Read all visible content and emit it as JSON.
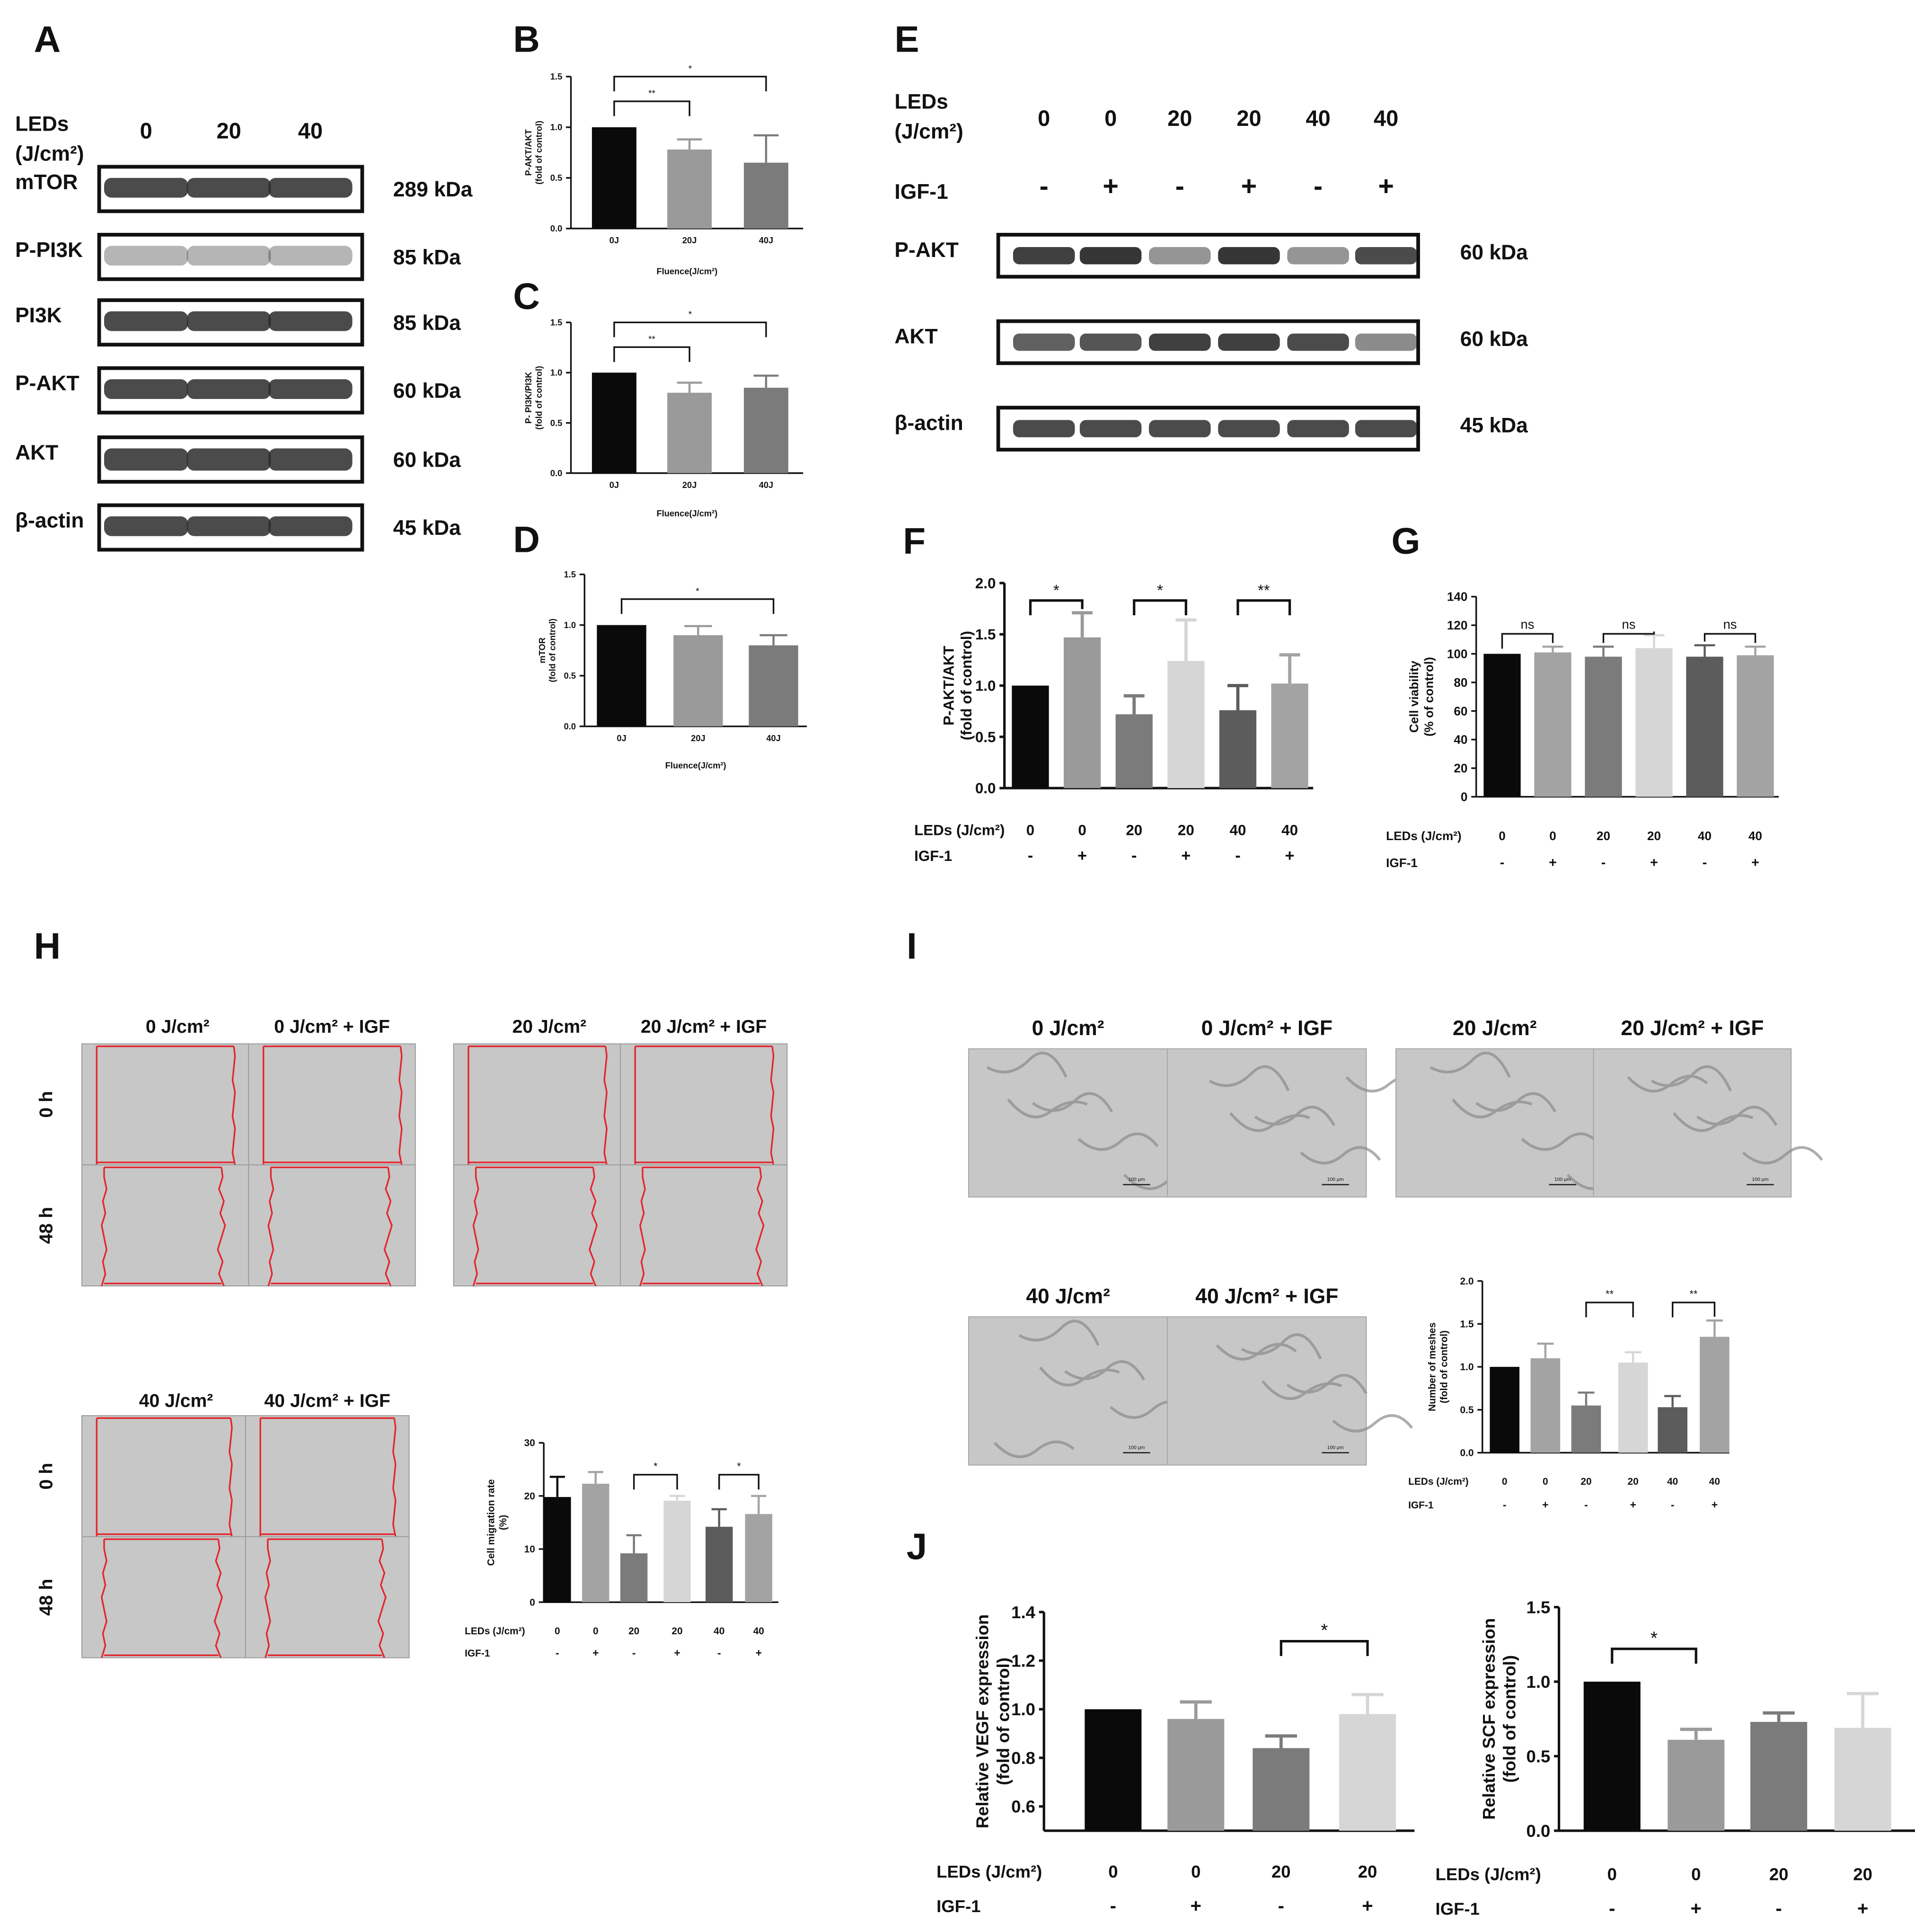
{
  "panel_letters": [
    "A",
    "B",
    "C",
    "D",
    "E",
    "F",
    "G",
    "H",
    "I",
    "J"
  ],
  "colors": {
    "black": "#0a0a0a",
    "mid_gray": "#9a9a9a",
    "dark_gray": "#7b7b7b",
    "light_gray": "#d6d6d6",
    "darker_gray": "#5c5c5c",
    "gray_2": "#a3a3a3",
    "band": "#2b2b2b",
    "blot_frame": "#111111",
    "micro_bg": "#c7c7c7",
    "wound_line": "#e3262e"
  },
  "western_A": {
    "header": "LEDs\n(J/cm²)",
    "lanes": [
      "0",
      "20",
      "40"
    ],
    "rows": [
      {
        "label": "mTOR",
        "kda": "289 kDa"
      },
      {
        "label": "P-PI3K",
        "kda": "85 kDa"
      },
      {
        "label": "PI3K",
        "kda": "85 kDa"
      },
      {
        "label": "P-AKT",
        "kda": "60 kDa"
      },
      {
        "label": "AKT",
        "kda": "60 kDa"
      },
      {
        "label": "β-actin",
        "kda": "45 kDa"
      }
    ]
  },
  "western_E": {
    "header": "LEDs\n(J/cm²)",
    "lanes": [
      "0",
      "0",
      "20",
      "20",
      "40",
      "40"
    ],
    "igf_label": "IGF-1",
    "igf": [
      "-",
      "+",
      "-",
      "+",
      "-",
      "+"
    ],
    "rows": [
      {
        "label": "P-AKT",
        "kda": "60 kDa"
      },
      {
        "label": "AKT",
        "kda": "60 kDa"
      },
      {
        "label": "β-actin",
        "kda": "45 kDa"
      }
    ]
  },
  "chart_data": [
    {
      "panel": "B",
      "type": "bar",
      "categories": [
        "0J",
        "20J",
        "40J"
      ],
      "values": [
        1.0,
        0.78,
        0.65
      ],
      "errors": [
        0,
        0.1,
        0.27
      ],
      "ylabel": "P-AKT/AKT\n(fold of control)",
      "xlabel": "Fluence(J/cm²)",
      "ylim": [
        0,
        1.5
      ],
      "yticks": [
        "0.0",
        "0.5",
        "1.0",
        "1.5"
      ],
      "significance": [
        {
          "from": 0,
          "to": 1,
          "label": "**"
        },
        {
          "from": 0,
          "to": 2,
          "label": "*"
        }
      ]
    },
    {
      "panel": "C",
      "type": "bar",
      "categories": [
        "0J",
        "20J",
        "40J"
      ],
      "values": [
        1.0,
        0.8,
        0.85
      ],
      "errors": [
        0,
        0.1,
        0.12
      ],
      "ylabel": "P- PI3K/PI3K\n(fold of control)",
      "xlabel": "Fluence(J/cm²)",
      "ylim": [
        0,
        1.5
      ],
      "yticks": [
        "0.0",
        "0.5",
        "1.0",
        "1.5"
      ],
      "significance": [
        {
          "from": 0,
          "to": 1,
          "label": "**"
        },
        {
          "from": 0,
          "to": 2,
          "label": "*"
        }
      ]
    },
    {
      "panel": "D",
      "type": "bar",
      "categories": [
        "0J",
        "20J",
        "40J"
      ],
      "values": [
        1.0,
        0.9,
        0.8
      ],
      "errors": [
        0,
        0.09,
        0.1
      ],
      "ylabel": "mTOR\n(fold of control)",
      "xlabel": "Fluence(J/cm²)",
      "ylim": [
        0,
        1.5
      ],
      "yticks": [
        "0.0",
        "0.5",
        "1.0",
        "1.5"
      ],
      "significance": [
        {
          "from": 0,
          "to": 2,
          "label": "*"
        }
      ]
    },
    {
      "panel": "F",
      "type": "bar",
      "categories": [
        "0",
        "0",
        "20",
        "20",
        "40",
        "40"
      ],
      "igf": [
        "-",
        "+",
        "-",
        "+",
        "-",
        "+"
      ],
      "values": [
        1.0,
        1.47,
        0.72,
        1.24,
        0.76,
        1.02
      ],
      "errors": [
        0,
        0.24,
        0.18,
        0.4,
        0.24,
        0.28
      ],
      "ylabel": "P-AKT/AKT\n(fold of control)",
      "leds_label": "LEDs (J/cm²)",
      "igf_label": "IGF-1",
      "ylim": [
        0,
        2.0
      ],
      "yticks": [
        "0.0",
        "0.5",
        "1.0",
        "1.5",
        "2.0"
      ],
      "significance": [
        {
          "from": 0,
          "to": 1,
          "label": "*"
        },
        {
          "from": 2,
          "to": 3,
          "label": "*"
        },
        {
          "from": 4,
          "to": 5,
          "label": "**"
        }
      ]
    },
    {
      "panel": "G",
      "type": "bar",
      "categories": [
        "0",
        "0",
        "20",
        "20",
        "40",
        "40"
      ],
      "igf": [
        "-",
        "+",
        "-",
        "+",
        "-",
        "+"
      ],
      "values": [
        100,
        101,
        98,
        104,
        98,
        99
      ],
      "errors": [
        0,
        4,
        7,
        9,
        8,
        6
      ],
      "ylabel": "Cell viability\n(% of control)",
      "leds_label": "LEDs (J/cm²)",
      "igf_label": "IGF-1",
      "ylim": [
        0,
        140
      ],
      "yticks": [
        "0",
        "20",
        "40",
        "60",
        "80",
        "100",
        "120",
        "140"
      ],
      "significance": [
        {
          "from": 0,
          "to": 1,
          "label": "ns"
        },
        {
          "from": 2,
          "to": 3,
          "label": "ns"
        },
        {
          "from": 4,
          "to": 5,
          "label": "ns"
        }
      ]
    },
    {
      "panel": "H-chart",
      "type": "bar",
      "categories": [
        "0",
        "0",
        "20",
        "20",
        "40",
        "40"
      ],
      "igf": [
        "-",
        "+",
        "-",
        "+",
        "-",
        "+"
      ],
      "values": [
        19.8,
        22.3,
        9.2,
        19.1,
        14.2,
        16.6
      ],
      "errors": [
        3.8,
        2.2,
        3.4,
        0.9,
        3.3,
        3.4
      ],
      "ylabel": "Cell migration rate\n(%)",
      "leds_label": "LEDs (J/cm²)",
      "igf_label": "IGF-1",
      "ylim": [
        0,
        30
      ],
      "yticks": [
        "0",
        "10",
        "20",
        "30"
      ],
      "significance": [
        {
          "from": 2,
          "to": 3,
          "label": "*"
        },
        {
          "from": 4,
          "to": 5,
          "label": "*"
        }
      ]
    },
    {
      "panel": "I-chart",
      "type": "bar",
      "categories": [
        "0",
        "0",
        "20",
        "20",
        "40",
        "40"
      ],
      "igf": [
        "-",
        "+",
        "-",
        "+",
        "-",
        "+"
      ],
      "values": [
        1.0,
        1.1,
        0.55,
        1.05,
        0.53,
        1.35
      ],
      "errors": [
        0,
        0.17,
        0.15,
        0.12,
        0.13,
        0.19
      ],
      "ylabel": "Number of meshes\n(fold of control)",
      "leds_label": "LEDs (J/cm²)",
      "igf_label": "IGF-1",
      "ylim": [
        0,
        2.0
      ],
      "yticks": [
        "0.0",
        "0.5",
        "1.0",
        "1.5",
        "2.0"
      ],
      "significance": [
        {
          "from": 2,
          "to": 3,
          "label": "**"
        },
        {
          "from": 4,
          "to": 5,
          "label": "**"
        }
      ]
    },
    {
      "panel": "J-VEGF",
      "type": "bar",
      "categories": [
        "0",
        "0",
        "20",
        "20"
      ],
      "igf": [
        "-",
        "+",
        "-",
        "+"
      ],
      "values": [
        1.0,
        0.96,
        0.84,
        0.98
      ],
      "errors": [
        0,
        0.07,
        0.05,
        0.08
      ],
      "ylabel": "Relative VEGF expression\n(fold of control)",
      "leds_label": "LEDs (J/cm²)",
      "igf_label": "IGF-1",
      "ylim": [
        0.5,
        1.4
      ],
      "yticks": [
        "0.6",
        "0.8",
        "1.0",
        "1.2",
        "1.4"
      ],
      "significance": [
        {
          "from": 2,
          "to": 3,
          "label": "*"
        }
      ]
    },
    {
      "panel": "J-SCF",
      "type": "bar",
      "categories": [
        "0",
        "0",
        "20",
        "20"
      ],
      "igf": [
        "-",
        "+",
        "-",
        "+"
      ],
      "values": [
        1.0,
        0.61,
        0.73,
        0.69
      ],
      "errors": [
        0,
        0.07,
        0.06,
        0.23
      ],
      "ylabel": "Relative SCF expression\n(fold of control)",
      "leds_label": "LEDs (J/cm²)",
      "igf_label": "IGF-1",
      "ylim": [
        0,
        1.5
      ],
      "yticks": [
        "0.0",
        "0.5",
        "1.0",
        "1.5"
      ],
      "significance": [
        {
          "from": 0,
          "to": 1,
          "label": "*"
        }
      ]
    }
  ],
  "micro_H": {
    "row_labels": [
      "0 h",
      "48 h"
    ],
    "groups": [
      {
        "labels": [
          "0 J/cm²",
          "0 J/cm² + IGF"
        ]
      },
      {
        "labels": [
          "20 J/cm²",
          "20 J/cm² + IGF"
        ]
      },
      {
        "labels": [
          "40 J/cm²",
          "40 J/cm² + IGF"
        ]
      }
    ]
  },
  "micro_I": {
    "scale_bar": "100 μm",
    "groups": [
      {
        "labels": [
          "0 J/cm²",
          "0 J/cm² + IGF"
        ]
      },
      {
        "labels": [
          "20 J/cm²",
          "20 J/cm² + IGF"
        ]
      },
      {
        "labels": [
          "40 J/cm²",
          "40 J/cm² + IGF"
        ]
      }
    ]
  }
}
